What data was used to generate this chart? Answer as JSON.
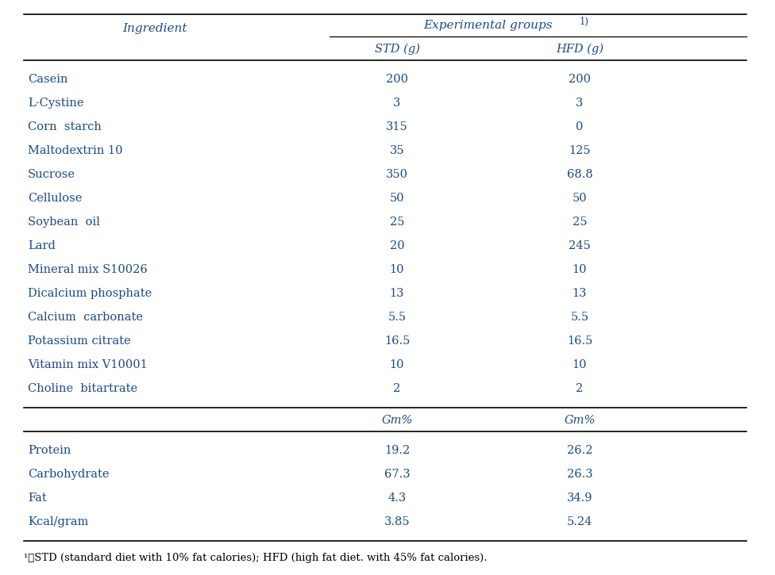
{
  "col_header_1": "Ingredient",
  "col_sub1": "STD (g)",
  "col_sub2": "HFD (g)",
  "ingredient_rows": [
    [
      "Casein",
      "200",
      "200"
    ],
    [
      "L-Cystine",
      "3",
      "3"
    ],
    [
      "Corn  starch",
      "315",
      "0"
    ],
    [
      "Maltodextrin 10",
      "35",
      "125"
    ],
    [
      "Sucrose",
      "350",
      "68.8"
    ],
    [
      "Cellulose",
      "50",
      "50"
    ],
    [
      "Soybean  oil",
      "25",
      "25"
    ],
    [
      "Lard",
      "20",
      "245"
    ],
    [
      "Mineral mix S10026",
      "10",
      "10"
    ],
    [
      "Dicalcium phosphate",
      "13",
      "13"
    ],
    [
      "Calcium  carbonate",
      "5.5",
      "5.5"
    ],
    [
      "Potassium citrate",
      "16.5",
      "16.5"
    ],
    [
      "Vitamin mix V10001",
      "10",
      "10"
    ],
    [
      "Choline  bitartrate",
      "2",
      "2"
    ]
  ],
  "composition_sub1": "Gm%",
  "composition_sub2": "Gm%",
  "composition_rows": [
    [
      "Protein",
      "19.2",
      "26.2"
    ],
    [
      "Carbohydrate",
      "67.3",
      "26.3"
    ],
    [
      "Fat",
      "4.3",
      "34.9"
    ],
    [
      "Kcal/gram",
      "3.85",
      "5.24"
    ]
  ],
  "text_color": "#1a4a8a",
  "bg_color": "#ffffff",
  "font_family": "DejaVu Serif",
  "footnote_color": "#000000"
}
